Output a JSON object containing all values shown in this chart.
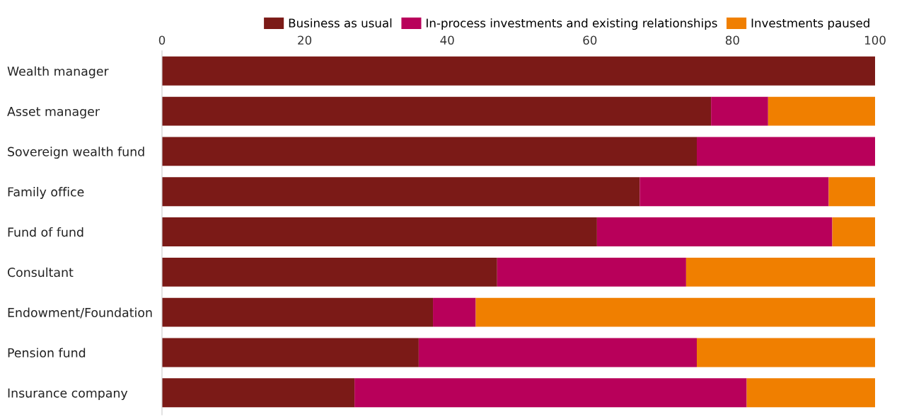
{
  "chart_data": {
    "type": "bar",
    "orientation": "horizontal",
    "stacked": true,
    "categories": [
      "Wealth manager",
      "Asset manager",
      "Sovereign wealth fund",
      "Family office",
      "Fund of fund",
      "Consultant",
      "Endowment/Foundation",
      "Pension fund",
      "Insurance company"
    ],
    "series": [
      {
        "name": "Business as usual",
        "color": "#7b1a17",
        "values": [
          100,
          77,
          75,
          67,
          61,
          47,
          38,
          36,
          27
        ]
      },
      {
        "name": "In-process investments and existing relationships",
        "color": "#b8005a",
        "values": [
          0,
          8,
          25,
          26.5,
          33,
          26.5,
          6,
          39,
          55
        ]
      },
      {
        "name": "Investments paused",
        "color": "#f07f00",
        "values": [
          0,
          15,
          0,
          6.5,
          6,
          26.5,
          56,
          25,
          18
        ]
      }
    ],
    "xlim": [
      0,
      100
    ],
    "xticks": [
      0,
      20,
      40,
      60,
      80,
      100
    ],
    "grid": false,
    "legend": "top right"
  }
}
